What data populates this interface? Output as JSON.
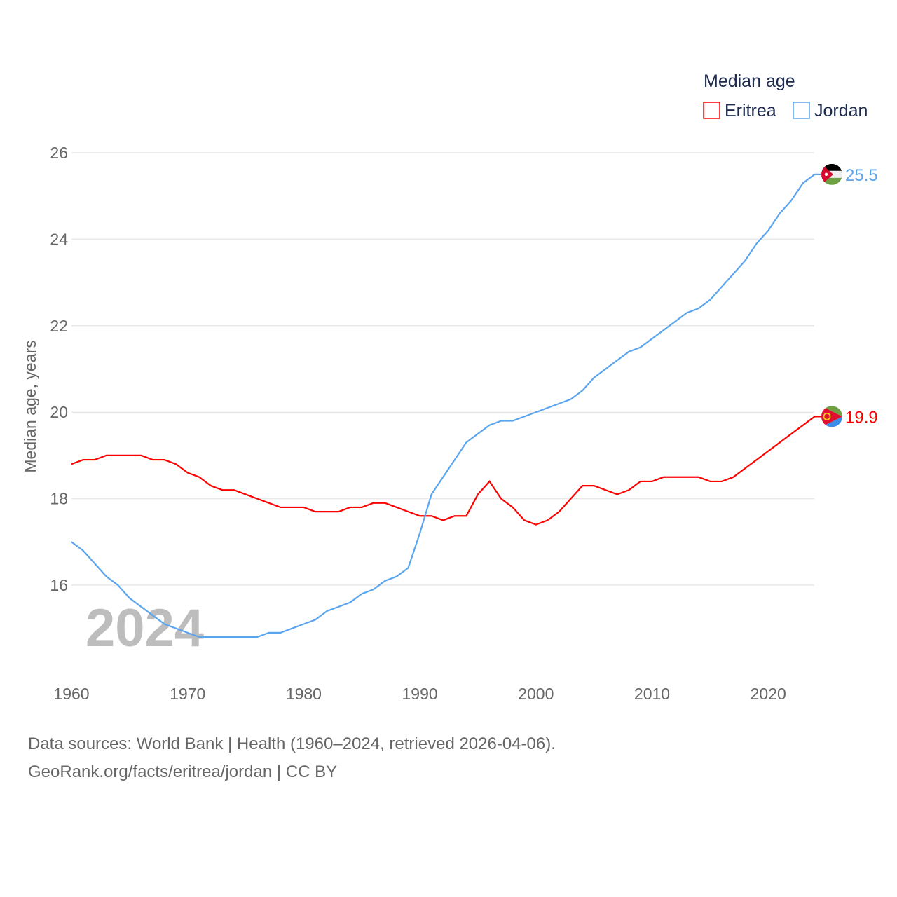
{
  "chart_data": {
    "type": "line",
    "title": "Median age",
    "ylabel": "Median age, years",
    "xlabel": "",
    "xlim": [
      1960,
      2024
    ],
    "ylim": [
      14.3,
      26.3
    ],
    "x_ticks": [
      1960,
      1970,
      1980,
      1990,
      2000,
      2010,
      2020
    ],
    "y_ticks": [
      16,
      18,
      20,
      22,
      24,
      26
    ],
    "grid": true,
    "legend_placement": "top-right",
    "year_label": "2024",
    "x": [
      1960,
      1961,
      1962,
      1963,
      1964,
      1965,
      1966,
      1967,
      1968,
      1969,
      1970,
      1971,
      1972,
      1973,
      1974,
      1975,
      1976,
      1977,
      1978,
      1979,
      1980,
      1981,
      1982,
      1983,
      1984,
      1985,
      1986,
      1987,
      1988,
      1989,
      1990,
      1991,
      1992,
      1993,
      1994,
      1995,
      1996,
      1997,
      1998,
      1999,
      2000,
      2001,
      2002,
      2003,
      2004,
      2005,
      2006,
      2007,
      2008,
      2009,
      2010,
      2011,
      2012,
      2013,
      2014,
      2015,
      2016,
      2017,
      2018,
      2019,
      2020,
      2021,
      2022,
      2023,
      2024
    ],
    "series": [
      {
        "name": "Eritrea",
        "color": "#ff0000",
        "last_label": "19.9",
        "flag": "eritrea-flag",
        "values": [
          18.8,
          18.9,
          18.9,
          19.0,
          19.0,
          19.0,
          19.0,
          18.9,
          18.9,
          18.8,
          18.6,
          18.5,
          18.3,
          18.2,
          18.2,
          18.1,
          18.0,
          17.9,
          17.8,
          17.8,
          17.8,
          17.7,
          17.7,
          17.7,
          17.8,
          17.8,
          17.9,
          17.9,
          17.8,
          17.7,
          17.6,
          17.6,
          17.5,
          17.6,
          17.6,
          18.1,
          18.4,
          18.0,
          17.8,
          17.5,
          17.4,
          17.5,
          17.7,
          18.0,
          18.3,
          18.3,
          18.2,
          18.1,
          18.2,
          18.4,
          18.4,
          18.5,
          18.5,
          18.5,
          18.5,
          18.4,
          18.4,
          18.5,
          18.7,
          18.9,
          19.1,
          19.3,
          19.5,
          19.7,
          19.9
        ]
      },
      {
        "name": "Jordan",
        "color": "#5ba4ee",
        "last_label": "25.5",
        "flag": "jordan-flag",
        "values": [
          17.0,
          16.8,
          16.5,
          16.2,
          16.0,
          15.7,
          15.5,
          15.3,
          15.1,
          15.0,
          14.9,
          14.8,
          14.8,
          14.8,
          14.8,
          14.8,
          14.8,
          14.9,
          14.9,
          15.0,
          15.1,
          15.2,
          15.4,
          15.5,
          15.6,
          15.8,
          15.9,
          16.1,
          16.2,
          16.4,
          17.2,
          18.1,
          18.5,
          18.9,
          19.3,
          19.5,
          19.7,
          19.8,
          19.8,
          19.9,
          20.0,
          20.1,
          20.2,
          20.3,
          20.5,
          20.8,
          21.0,
          21.2,
          21.4,
          21.5,
          21.7,
          21.9,
          22.1,
          22.3,
          22.4,
          22.6,
          22.9,
          23.2,
          23.5,
          23.9,
          24.2,
          24.6,
          24.9,
          25.3,
          25.5
        ]
      }
    ]
  },
  "footer": {
    "line1": "Data sources: World Bank | Health (1960–2024, retrieved 2026-04-06).",
    "line2": "GeoRank.org/facts/eritrea/jordan | CC BY"
  }
}
